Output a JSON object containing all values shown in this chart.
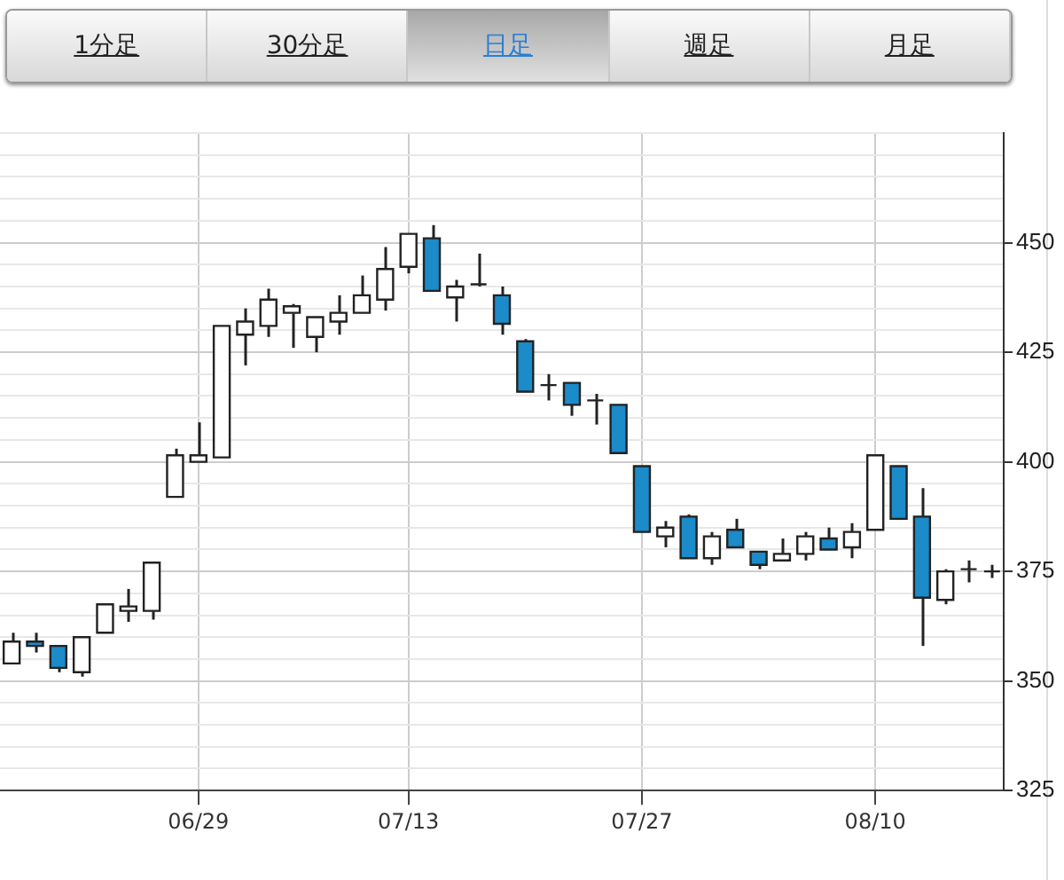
{
  "chart_data": {
    "type": "candlestick",
    "annotations": [
      "1分足",
      "30分足",
      "日足",
      "週足",
      "月足"
    ],
    "categories": [
      null,
      null,
      null,
      null,
      null,
      null,
      null,
      null,
      "06/29",
      null,
      null,
      null,
      null,
      null,
      null,
      null,
      null,
      "07/13",
      null,
      null,
      null,
      null,
      null,
      null,
      null,
      null,
      null,
      "07/27",
      null,
      null,
      null,
      null,
      null,
      null,
      null,
      null,
      null,
      "08/10",
      null,
      null,
      null,
      null,
      null
    ],
    "ohlc": [
      [
        354,
        361,
        354,
        359
      ],
      [
        359,
        361,
        356.5,
        358
      ],
      [
        358,
        358,
        352,
        353
      ],
      [
        352,
        360,
        351,
        360
      ],
      [
        361,
        367.5,
        361,
        367.5
      ],
      [
        366,
        371,
        363.5,
        367
      ],
      [
        366,
        377,
        364,
        377
      ],
      [
        392,
        403,
        392,
        401.5
      ],
      [
        400,
        409,
        400,
        401.5
      ],
      [
        401,
        431,
        401,
        431
      ],
      [
        429,
        435,
        422,
        432
      ],
      [
        431,
        439.5,
        428.5,
        437
      ],
      [
        434,
        436,
        426,
        435.5
      ],
      [
        428.5,
        433,
        425,
        433
      ],
      [
        432,
        438,
        429,
        434
      ],
      [
        434,
        442.5,
        434,
        438
      ],
      [
        437,
        449,
        434.5,
        444
      ],
      [
        444.5,
        452,
        443,
        452
      ],
      [
        451,
        454,
        439,
        439
      ],
      [
        437.5,
        441.5,
        432,
        440
      ],
      [
        440.5,
        447.5,
        440,
        440.5
      ],
      [
        438,
        440,
        429,
        431.5
      ],
      [
        427.5,
        428,
        416,
        416
      ],
      [
        417.5,
        420,
        414,
        417.5
      ],
      [
        418,
        418,
        410.5,
        413
      ],
      [
        414,
        415.5,
        408.5,
        414
      ],
      [
        413,
        413,
        402,
        402
      ],
      [
        399,
        399,
        384,
        384
      ],
      [
        383,
        386.5,
        380.5,
        385
      ],
      [
        387.5,
        388,
        378,
        378
      ],
      [
        378,
        384,
        376.5,
        383
      ],
      [
        384.5,
        387,
        380.5,
        380.5
      ],
      [
        379.5,
        379.5,
        375.5,
        376.5
      ],
      [
        377.5,
        382.5,
        377.5,
        379
      ],
      [
        379,
        384,
        377.5,
        383
      ],
      [
        382.5,
        385,
        380,
        380
      ],
      [
        380.5,
        386,
        378,
        384
      ],
      [
        384.5,
        401.5,
        384.5,
        401.5
      ],
      [
        399,
        399,
        387,
        387
      ],
      [
        387.5,
        394,
        358,
        369
      ],
      [
        368.5,
        375.5,
        367.5,
        375
      ],
      [
        375.5,
        377.5,
        372.5,
        375.5
      ],
      [
        375,
        376.5,
        373.5,
        375
      ]
    ],
    "colors": [
      "#ffffff",
      "#1b8bc9",
      "#1b8bc9",
      "#ffffff",
      "#ffffff",
      "#ffffff",
      "#ffffff",
      "#ffffff",
      "#ffffff",
      "#ffffff",
      "#ffffff",
      "#ffffff",
      "#ffffff",
      "#ffffff",
      "#ffffff",
      "#ffffff",
      "#ffffff",
      "#ffffff",
      "#1b8bc9",
      "#ffffff",
      "#ffffff",
      "#1b8bc9",
      "#1b8bc9",
      "#ffffff",
      "#1b8bc9",
      "#ffffff",
      "#1b8bc9",
      "#1b8bc9",
      "#ffffff",
      "#1b8bc9",
      "#ffffff",
      "#1b8bc9",
      "#1b8bc9",
      "#ffffff",
      "#ffffff",
      "#1b8bc9",
      "#ffffff",
      "#ffffff",
      "#1b8bc9",
      "#1b8bc9",
      "#ffffff",
      "#ffffff",
      "#ffffff"
    ],
    "ylim": [
      325,
      475
    ],
    "yticks": [
      325,
      {
        "value": 330,
        "label": null
      },
      {
        "value": 335,
        "label": null
      },
      {
        "value": 340,
        "label": null
      },
      {
        "value": 345,
        "label": null
      },
      350,
      {
        "value": 355,
        "label": null
      },
      {
        "value": 360,
        "label": null
      },
      {
        "value": 365,
        "label": null
      },
      {
        "value": 370,
        "label": null
      },
      375,
      {
        "value": 380,
        "label": null
      },
      {
        "value": 385,
        "label": null
      },
      {
        "value": 390,
        "label": null
      },
      {
        "value": 395,
        "label": null
      },
      400,
      {
        "value": 405,
        "label": null
      },
      {
        "value": 410,
        "label": null
      },
      {
        "value": 415,
        "label": null
      },
      {
        "value": 420,
        "label": null
      },
      425,
      {
        "value": 430,
        "label": null
      },
      {
        "value": 435,
        "label": null
      },
      {
        "value": 440,
        "label": null
      },
      {
        "value": 445,
        "label": null
      },
      450,
      {
        "value": 455,
        "label": null
      },
      {
        "value": 460,
        "label": null
      },
      {
        "value": 465,
        "label": null
      },
      {
        "value": 470,
        "label": null
      },
      {
        "value": 475,
        "label": null
      }
    ],
    "grid": true
  }
}
